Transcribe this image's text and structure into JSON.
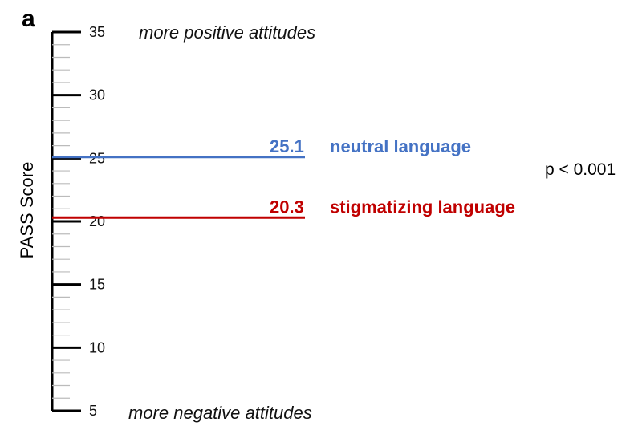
{
  "panel_label": "a",
  "p_value_text": "p < 0.001",
  "chart_data": {
    "type": "line",
    "ylabel": "PASS Score",
    "ylim": [
      5,
      35
    ],
    "yticks": [
      35,
      30,
      25,
      20,
      15,
      10,
      5
    ],
    "minor_tick_step": 1,
    "annotations": {
      "top": "more positive attitudes",
      "bottom": "more negative attitudes"
    },
    "series": [
      {
        "name": "neutral language",
        "value": 25.1,
        "value_label": "25.1",
        "color": "#4472c4"
      },
      {
        "name": "stigmatizing language",
        "value": 20.3,
        "value_label": "20.3",
        "color": "#c00000"
      }
    ]
  }
}
